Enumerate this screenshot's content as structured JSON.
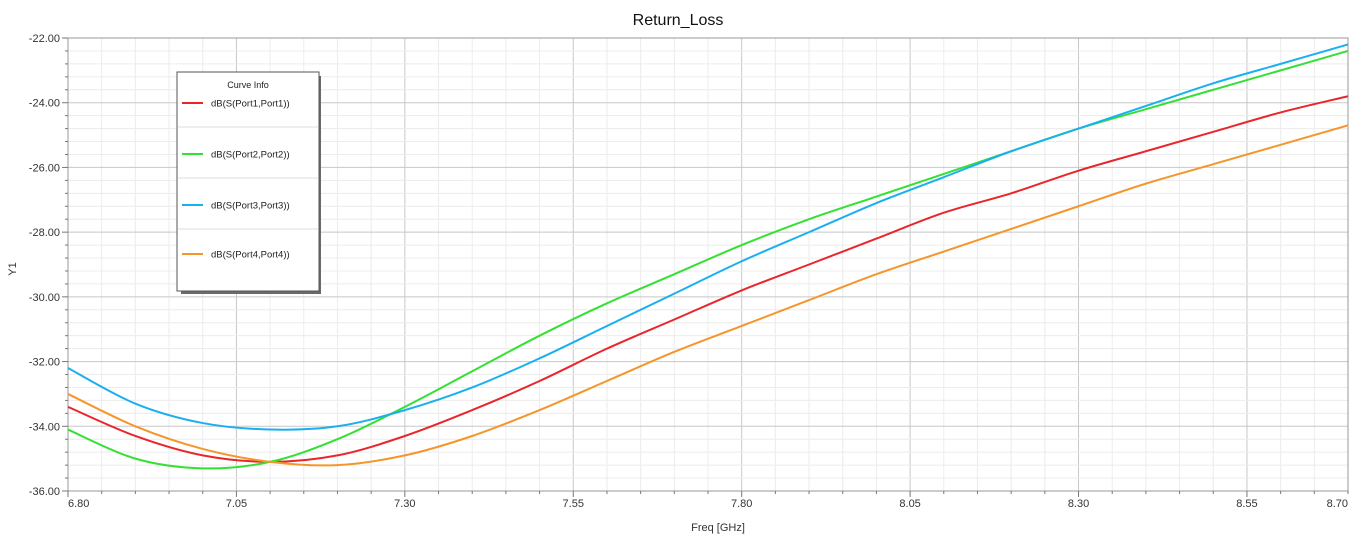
{
  "chart_data": {
    "type": "line",
    "title": "Return_Loss",
    "xlabel": "Freq [GHz]",
    "ylabel": "Y1",
    "xlim": [
      6.8,
      8.7
    ],
    "ylim": [
      -36.0,
      -22.0
    ],
    "xticks": [
      "6.80",
      "7.05",
      "7.30",
      "7.55",
      "7.80",
      "8.05",
      "8.30",
      "8.55",
      "8.70"
    ],
    "xtick_values": [
      6.8,
      7.05,
      7.3,
      7.55,
      7.8,
      8.05,
      8.3,
      8.55,
      8.7
    ],
    "yticks": [
      "-22.00",
      "-24.00",
      "-26.00",
      "-28.00",
      "-30.00",
      "-32.00",
      "-34.00",
      "-36.00"
    ],
    "ytick_values": [
      -22,
      -24,
      -26,
      -28,
      -30,
      -32,
      -34,
      -36
    ],
    "grid": true,
    "legend": {
      "title": "Curve Info",
      "placement": "top-left"
    },
    "series": [
      {
        "name": "dB(S(Port1,Port1))",
        "color": "#e8262b",
        "x": [
          6.8,
          6.9,
          7.0,
          7.1,
          7.2,
          7.3,
          7.4,
          7.5,
          7.6,
          7.7,
          7.8,
          7.9,
          8.0,
          8.1,
          8.2,
          8.3,
          8.4,
          8.5,
          8.6,
          8.7
        ],
        "y": [
          -33.4,
          -34.3,
          -34.9,
          -35.1,
          -34.9,
          -34.3,
          -33.5,
          -32.6,
          -31.6,
          -30.7,
          -29.8,
          -29.0,
          -28.2,
          -27.4,
          -26.8,
          -26.1,
          -25.5,
          -24.9,
          -24.3,
          -23.8
        ]
      },
      {
        "name": "dB(S(Port2,Port2))",
        "color": "#33e033",
        "x": [
          6.8,
          6.9,
          7.0,
          7.1,
          7.2,
          7.3,
          7.4,
          7.5,
          7.6,
          7.7,
          7.8,
          7.9,
          8.0,
          8.1,
          8.2,
          8.3,
          8.4,
          8.5,
          8.6,
          8.7
        ],
        "y": [
          -34.1,
          -35.0,
          -35.3,
          -35.1,
          -34.4,
          -33.4,
          -32.3,
          -31.2,
          -30.2,
          -29.3,
          -28.4,
          -27.6,
          -26.9,
          -26.2,
          -25.5,
          -24.8,
          -24.2,
          -23.6,
          -23.0,
          -22.4
        ]
      },
      {
        "name": "dB(S(Port3,Port3))",
        "color": "#1ab0f0",
        "x": [
          6.8,
          6.9,
          7.0,
          7.1,
          7.2,
          7.3,
          7.4,
          7.5,
          7.6,
          7.7,
          7.8,
          7.9,
          8.0,
          8.1,
          8.2,
          8.3,
          8.4,
          8.5,
          8.6,
          8.7
        ],
        "y": [
          -32.2,
          -33.3,
          -33.9,
          -34.1,
          -34.0,
          -33.5,
          -32.8,
          -31.9,
          -30.9,
          -29.9,
          -28.9,
          -28.0,
          -27.1,
          -26.3,
          -25.5,
          -24.8,
          -24.1,
          -23.4,
          -22.8,
          -22.2
        ]
      },
      {
        "name": "dB(S(Port4,Port4))",
        "color": "#f5962a",
        "x": [
          6.8,
          6.9,
          7.0,
          7.1,
          7.2,
          7.3,
          7.4,
          7.5,
          7.6,
          7.7,
          7.8,
          7.9,
          8.0,
          8.1,
          8.2,
          8.3,
          8.4,
          8.5,
          8.6,
          8.7
        ],
        "y": [
          -33.0,
          -34.0,
          -34.7,
          -35.1,
          -35.2,
          -34.9,
          -34.3,
          -33.5,
          -32.6,
          -31.7,
          -30.9,
          -30.1,
          -29.3,
          -28.6,
          -27.9,
          -27.2,
          -26.5,
          -25.9,
          -25.3,
          -24.7
        ]
      }
    ]
  }
}
